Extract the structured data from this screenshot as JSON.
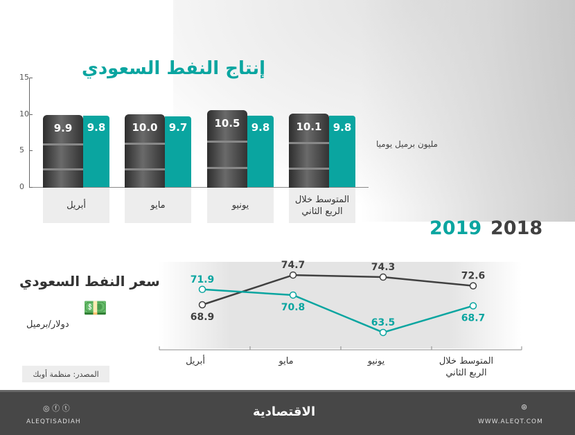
{
  "production": {
    "title": "إنتاج النفط السعودي",
    "unit": "مليون برميل يوميا"
  },
  "price": {
    "title": "سعر النفط السعودي",
    "unit": "دولار/برميل"
  },
  "legend": {
    "y2019": "2019",
    "y2018": "2018"
  },
  "source": "المصدر: منظمة أوبك",
  "footer": {
    "handle": "ALEQTISADIAH",
    "logo": "الاقتصادية",
    "site": "WWW.ALEQT.COM"
  },
  "colors": {
    "teal": "#0aa5a0",
    "dark": "#404040",
    "footer": "#474747"
  },
  "chart_data": [
    {
      "type": "bar",
      "title": "إنتاج النفط السعودي",
      "ylabel": "مليون برميل يوميا",
      "ylim": [
        0,
        15
      ],
      "yticks": [
        "0",
        "5",
        "10",
        "15"
      ],
      "categories": [
        "أبريل",
        "مايو",
        "يونيو",
        "المتوسط خلال الربع الثاني"
      ],
      "series": [
        {
          "name": "2018",
          "values": [
            9.9,
            10.0,
            10.5,
            10.1
          ]
        },
        {
          "name": "2019",
          "values": [
            9.8,
            9.7,
            9.8,
            9.8
          ]
        }
      ]
    },
    {
      "type": "line",
      "title": "سعر النفط السعودي",
      "ylabel": "دولار/برميل",
      "categories": [
        "أبريل",
        "مايو",
        "يونيو",
        "المتوسط خلال الربع الثاني"
      ],
      "series": [
        {
          "name": "2018",
          "values": [
            68.9,
            74.7,
            74.3,
            72.6
          ]
        },
        {
          "name": "2019",
          "values": [
            71.9,
            70.8,
            63.5,
            68.7
          ]
        }
      ]
    }
  ]
}
